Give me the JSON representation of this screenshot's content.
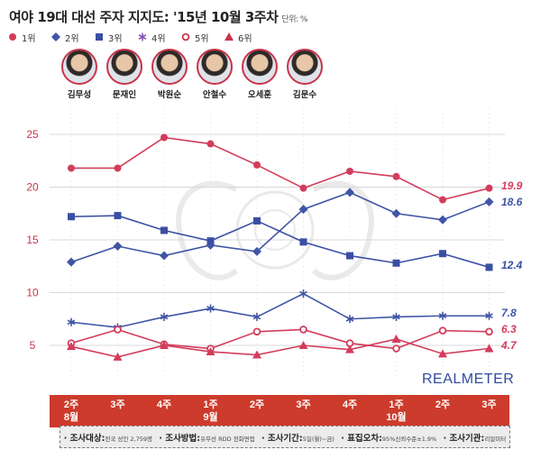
{
  "header": {
    "title": "여야 19대 대선 주자 지지도: '15년 10월 3주차",
    "unit": "단위: %"
  },
  "legend": [
    {
      "rank": "1위",
      "color": "#d33c5a",
      "marker": "circle"
    },
    {
      "rank": "2위",
      "color": "#4055a5",
      "marker": "diamond"
    },
    {
      "rank": "3위",
      "color": "#3a4fa3",
      "marker": "square"
    },
    {
      "rank": "4위",
      "color": "#8a55b5",
      "marker": "asterisk"
    },
    {
      "rank": "5위",
      "color": "#c8344a",
      "marker": "circle-open"
    },
    {
      "rank": "6위",
      "color": "#c8344a",
      "marker": "triangle"
    }
  ],
  "candidates": [
    "김무성",
    "문재인",
    "박원순",
    "안철수",
    "오세훈",
    "김문수"
  ],
  "brand": "REALMETER",
  "chart_data": {
    "type": "line",
    "categories": [
      {
        "line1": "2주",
        "line2": "8월"
      },
      {
        "line1": "3주",
        "line2": ""
      },
      {
        "line1": "4주",
        "line2": ""
      },
      {
        "line1": "1주",
        "line2": "9월"
      },
      {
        "line1": "2주",
        "line2": ""
      },
      {
        "line1": "3주",
        "line2": ""
      },
      {
        "line1": "4주",
        "line2": ""
      },
      {
        "line1": "1주",
        "line2": "10월"
      },
      {
        "line1": "2주",
        "line2": ""
      },
      {
        "line1": "3주",
        "line2": ""
      }
    ],
    "yticks": [
      "25",
      "20",
      "15",
      "10",
      "5"
    ],
    "ylim": [
      0,
      27
    ],
    "series": [
      {
        "marker": "circle",
        "color": "#d33c5a",
        "values": [
          21.8,
          21.8,
          24.7,
          24.1,
          22.1,
          19.9,
          21.5,
          21.0,
          18.8,
          19.9
        ],
        "end_label": "19.9"
      },
      {
        "marker": "diamond",
        "color": "#4055a5",
        "values": [
          12.9,
          14.4,
          13.5,
          14.5,
          13.9,
          17.9,
          19.5,
          17.5,
          16.9,
          18.6
        ],
        "end_label": "18.6"
      },
      {
        "marker": "square",
        "color": "#3a4fa3",
        "values": [
          17.2,
          17.3,
          15.9,
          14.9,
          16.8,
          14.8,
          13.5,
          12.8,
          13.7,
          12.4
        ],
        "end_label": "12.4"
      },
      {
        "marker": "asterisk",
        "color": "#4055a5",
        "values": [
          7.2,
          6.7,
          7.7,
          8.5,
          7.7,
          9.9,
          7.5,
          7.7,
          7.8,
          7.8
        ],
        "end_label": "7.8"
      },
      {
        "marker": "circle-open",
        "color": "#d33c5a",
        "values": [
          5.2,
          6.5,
          5.1,
          4.7,
          6.3,
          6.5,
          5.2,
          4.7,
          6.4,
          6.3
        ],
        "end_label": "6.3"
      },
      {
        "marker": "triangle",
        "color": "#d33c5a",
        "values": [
          4.9,
          3.9,
          5.0,
          4.4,
          4.1,
          5.0,
          4.6,
          5.6,
          4.2,
          4.7
        ],
        "end_label": "4.7"
      }
    ]
  },
  "footer": [
    {
      "key": "조사대상:",
      "value": "전국 성인 2,759명"
    },
    {
      "key": "조사방법:",
      "value": "유무선 RDD 전화면접"
    },
    {
      "key": "조사기간:",
      "value": "5일(월)~금)"
    },
    {
      "key": "표집오차:",
      "value": "95%신뢰수준±1.9%"
    },
    {
      "key": "조사기관:",
      "value": "리얼미터"
    }
  ]
}
